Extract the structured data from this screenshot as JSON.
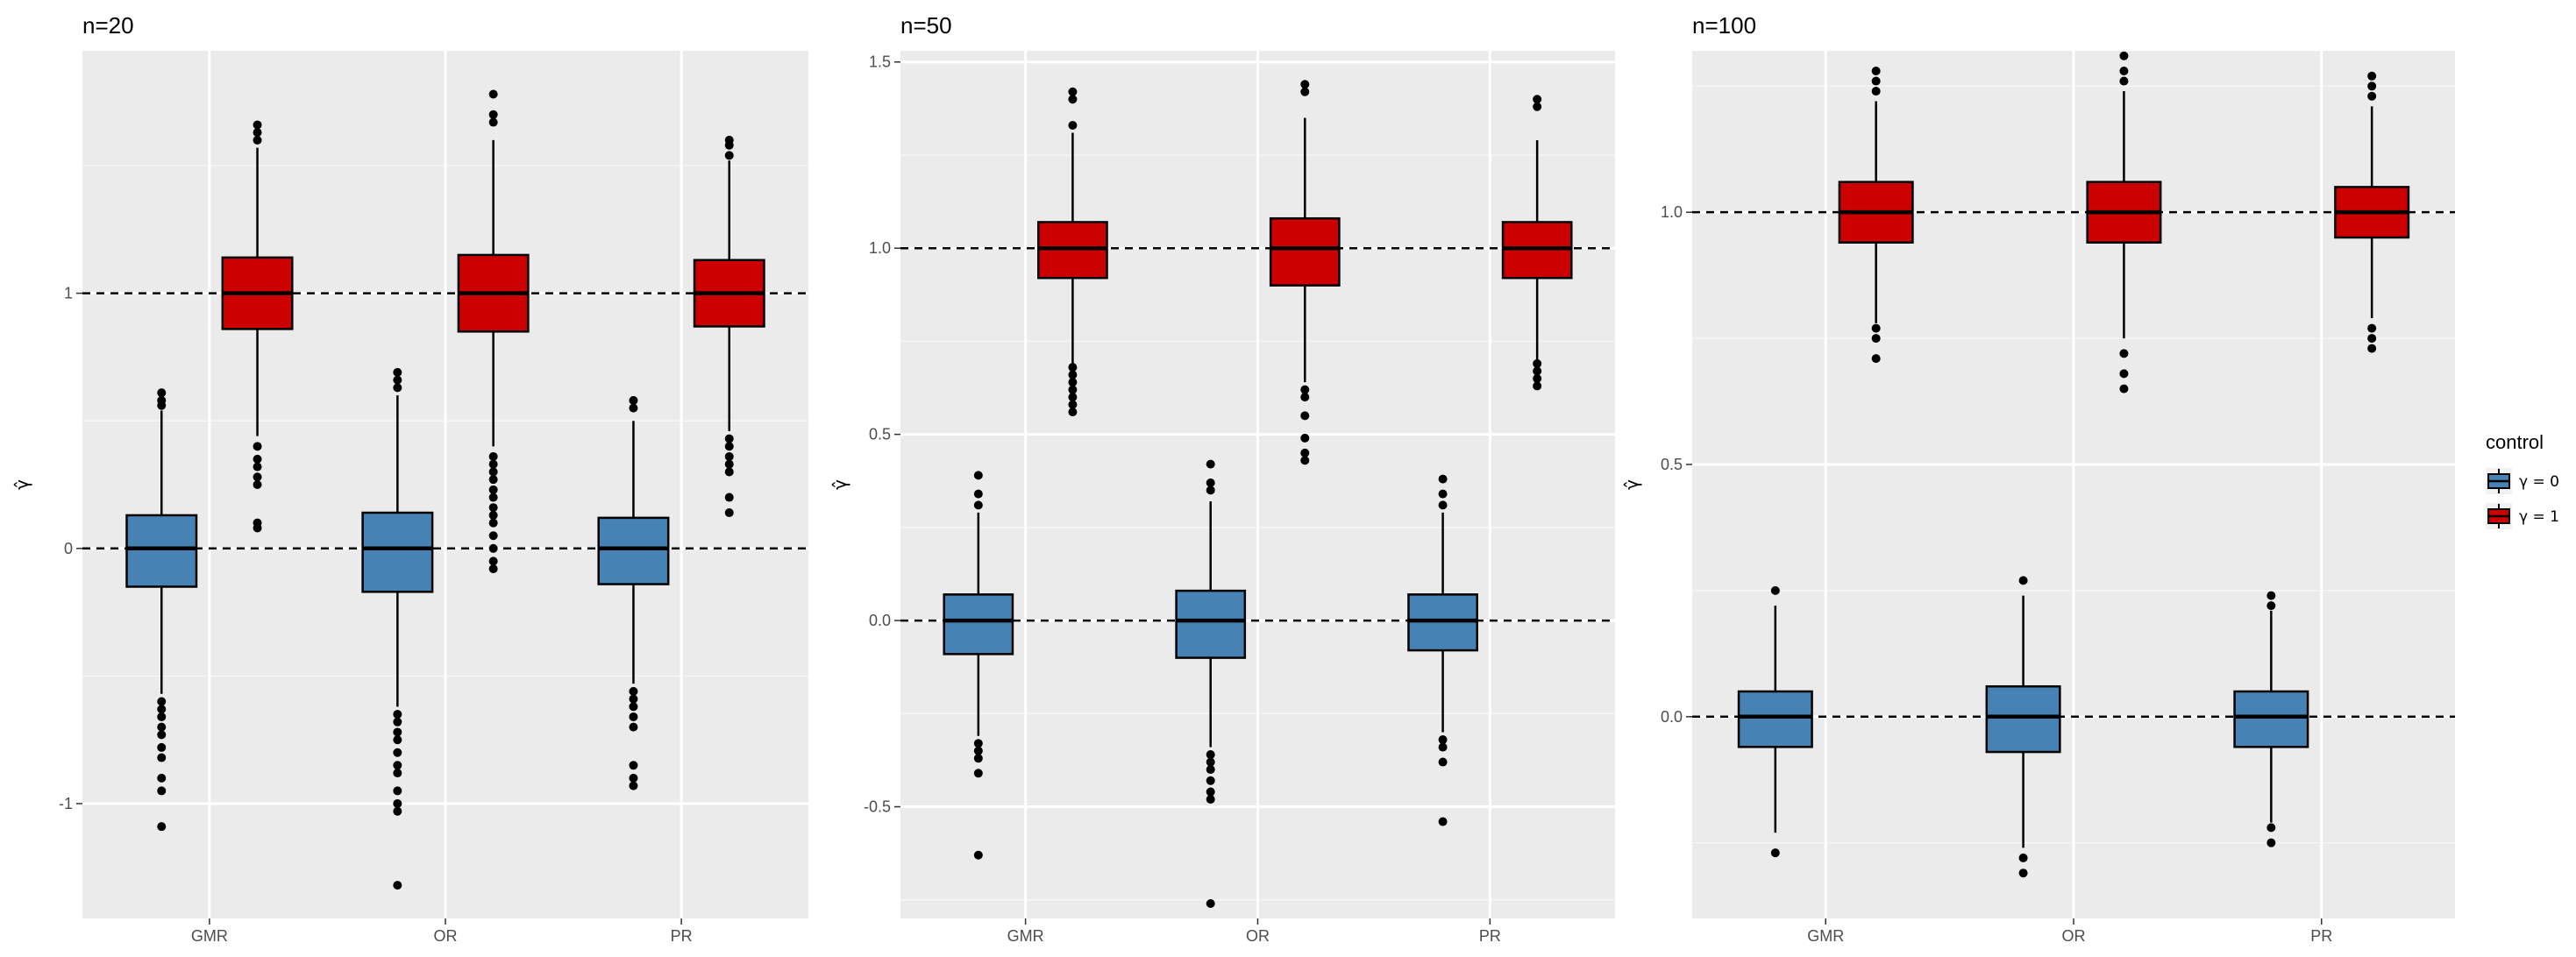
{
  "chart_data": {
    "type": "box",
    "categories": [
      "GMR",
      "OR",
      "PR"
    ],
    "ylabel": "γ̂",
    "legend": {
      "title": "control",
      "position": "right",
      "entries": [
        {
          "label": "γ = 0",
          "color": "#4682B4"
        },
        {
          "label": "γ = 1",
          "color": "#CD0000"
        }
      ]
    },
    "reference_lines": [
      0,
      1
    ],
    "panels": [
      {
        "title": "n=20",
        "ylim": [
          -1.45,
          1.95
        ],
        "yticks": [
          -1,
          0,
          1
        ],
        "ytick_labels": [
          "-1",
          "0",
          "1"
        ],
        "series": [
          {
            "name": "γ = 0",
            "boxes": [
              {
                "category": "GMR",
                "q1": -0.15,
                "median": 0.0,
                "q3": 0.13,
                "whisker_low": -0.57,
                "whisker_high": 0.54,
                "outliers": [
                  -0.6,
                  -0.63,
                  -0.66,
                  -0.7,
                  -0.73,
                  -0.78,
                  -0.82,
                  -0.9,
                  -0.95,
                  -1.09,
                  0.56,
                  0.58,
                  0.61
                ]
              },
              {
                "category": "OR",
                "q1": -0.17,
                "median": 0.0,
                "q3": 0.14,
                "whisker_low": -0.62,
                "whisker_high": 0.6,
                "outliers": [
                  -0.65,
                  -0.68,
                  -0.72,
                  -0.75,
                  -0.8,
                  -0.85,
                  -0.88,
                  -0.95,
                  -1.0,
                  -1.03,
                  -1.32,
                  0.63,
                  0.66,
                  0.69
                ]
              },
              {
                "category": "PR",
                "q1": -0.14,
                "median": 0.0,
                "q3": 0.12,
                "whisker_low": -0.53,
                "whisker_high": 0.5,
                "outliers": [
                  -0.56,
                  -0.59,
                  -0.62,
                  -0.66,
                  -0.7,
                  -0.85,
                  -0.9,
                  -0.93,
                  0.55,
                  0.58
                ]
              }
            ]
          },
          {
            "name": "γ = 1",
            "boxes": [
              {
                "category": "GMR",
                "q1": 0.86,
                "median": 1.0,
                "q3": 1.14,
                "whisker_low": 0.44,
                "whisker_high": 1.57,
                "outliers": [
                  0.08,
                  0.1,
                  0.25,
                  0.28,
                  0.32,
                  0.35,
                  0.4,
                  1.6,
                  1.63,
                  1.66
                ]
              },
              {
                "category": "OR",
                "q1": 0.85,
                "median": 1.0,
                "q3": 1.15,
                "whisker_low": 0.4,
                "whisker_high": 1.6,
                "outliers": [
                  -0.08,
                  -0.05,
                  0.0,
                  0.05,
                  0.1,
                  0.13,
                  0.16,
                  0.2,
                  0.23,
                  0.27,
                  0.3,
                  0.33,
                  0.36,
                  1.67,
                  1.7,
                  1.78
                ]
              },
              {
                "category": "PR",
                "q1": 0.87,
                "median": 1.0,
                "q3": 1.13,
                "whisker_low": 0.46,
                "whisker_high": 1.52,
                "outliers": [
                  0.14,
                  0.2,
                  0.3,
                  0.33,
                  0.36,
                  0.4,
                  0.43,
                  1.54,
                  1.58,
                  1.6
                ]
              }
            ]
          }
        ]
      },
      {
        "title": "n=50",
        "ylim": [
          -0.8,
          1.53
        ],
        "yticks": [
          -0.5,
          0.0,
          0.5,
          1.0,
          1.5
        ],
        "ytick_labels": [
          "-0.5",
          "0.0",
          "0.5",
          "1.0",
          "1.5"
        ],
        "series": [
          {
            "name": "γ = 0",
            "boxes": [
              {
                "category": "GMR",
                "q1": -0.09,
                "median": 0.0,
                "q3": 0.07,
                "whisker_low": -0.31,
                "whisker_high": 0.29,
                "outliers": [
                  -0.33,
                  -0.35,
                  -0.37,
                  -0.41,
                  -0.63,
                  0.31,
                  0.34,
                  0.39
                ]
              },
              {
                "category": "OR",
                "q1": -0.1,
                "median": 0.0,
                "q3": 0.08,
                "whisker_low": -0.34,
                "whisker_high": 0.32,
                "outliers": [
                  -0.36,
                  -0.38,
                  -0.4,
                  -0.43,
                  -0.46,
                  -0.48,
                  -0.76,
                  0.35,
                  0.37,
                  0.42
                ]
              },
              {
                "category": "PR",
                "q1": -0.08,
                "median": 0.0,
                "q3": 0.07,
                "whisker_low": -0.3,
                "whisker_high": 0.29,
                "outliers": [
                  -0.32,
                  -0.34,
                  -0.38,
                  -0.54,
                  0.31,
                  0.34,
                  0.38
                ]
              }
            ]
          },
          {
            "name": "γ = 1",
            "boxes": [
              {
                "category": "GMR",
                "q1": 0.92,
                "median": 1.0,
                "q3": 1.07,
                "whisker_low": 0.69,
                "whisker_high": 1.31,
                "outliers": [
                  0.56,
                  0.58,
                  0.6,
                  0.62,
                  0.64,
                  0.66,
                  0.68,
                  1.33,
                  1.4,
                  1.42
                ]
              },
              {
                "category": "OR",
                "q1": 0.9,
                "median": 1.0,
                "q3": 1.08,
                "whisker_low": 0.64,
                "whisker_high": 1.35,
                "outliers": [
                  0.43,
                  0.45,
                  0.49,
                  0.55,
                  0.6,
                  0.62,
                  1.42,
                  1.44
                ]
              },
              {
                "category": "PR",
                "q1": 0.92,
                "median": 1.0,
                "q3": 1.07,
                "whisker_low": 0.7,
                "whisker_high": 1.29,
                "outliers": [
                  0.63,
                  0.65,
                  0.67,
                  0.69,
                  1.38,
                  1.4
                ]
              }
            ]
          }
        ]
      },
      {
        "title": "n=100",
        "ylim": [
          -0.4,
          1.32
        ],
        "yticks": [
          0.0,
          0.5,
          1.0
        ],
        "ytick_labels": [
          "0.0",
          "0.5",
          "1.0"
        ],
        "series": [
          {
            "name": "γ = 0",
            "boxes": [
              {
                "category": "GMR",
                "q1": -0.06,
                "median": 0.0,
                "q3": 0.05,
                "whisker_low": -0.23,
                "whisker_high": 0.22,
                "outliers": [
                  -0.27,
                  0.25
                ]
              },
              {
                "category": "OR",
                "q1": -0.07,
                "median": 0.0,
                "q3": 0.06,
                "whisker_low": -0.26,
                "whisker_high": 0.24,
                "outliers": [
                  -0.28,
                  -0.31,
                  0.27
                ]
              },
              {
                "category": "PR",
                "q1": -0.06,
                "median": 0.0,
                "q3": 0.05,
                "whisker_low": -0.21,
                "whisker_high": 0.21,
                "outliers": [
                  -0.22,
                  -0.25,
                  0.22,
                  0.24
                ]
              }
            ]
          },
          {
            "name": "γ = 1",
            "boxes": [
              {
                "category": "GMR",
                "q1": 0.94,
                "median": 1.0,
                "q3": 1.06,
                "whisker_low": 0.78,
                "whisker_high": 1.22,
                "outliers": [
                  0.71,
                  0.75,
                  0.77,
                  1.24,
                  1.26,
                  1.28
                ]
              },
              {
                "category": "OR",
                "q1": 0.94,
                "median": 1.0,
                "q3": 1.06,
                "whisker_low": 0.75,
                "whisker_high": 1.24,
                "outliers": [
                  0.65,
                  0.68,
                  0.72,
                  1.26,
                  1.28,
                  1.31
                ]
              },
              {
                "category": "PR",
                "q1": 0.95,
                "median": 1.0,
                "q3": 1.05,
                "whisker_low": 0.79,
                "whisker_high": 1.21,
                "outliers": [
                  0.73,
                  0.75,
                  0.77,
                  1.23,
                  1.25,
                  1.27
                ]
              }
            ]
          }
        ]
      }
    ]
  }
}
